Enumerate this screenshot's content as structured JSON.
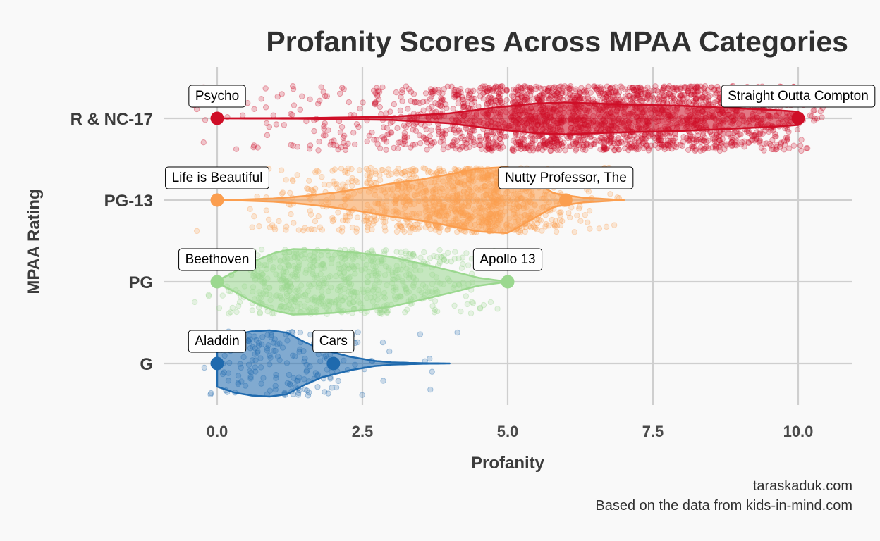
{
  "chart_data": {
    "type": "violin",
    "title": "Profanity Scores Across MPAA Categories",
    "xlabel": "Profanity",
    "ylabel": "MPAA Rating",
    "xlim": [
      -0.8,
      11.0
    ],
    "xticks": [
      "0.0",
      "2.5",
      "5.0",
      "7.5",
      "10.0"
    ],
    "xtick_values": [
      0,
      2.5,
      5,
      7.5,
      10
    ],
    "grid": true,
    "caption": [
      "taraskaduk.com",
      "Based on the data from kids-in-mind.com"
    ],
    "categories": [
      "G",
      "PG",
      "PG-13",
      "R & NC-17"
    ],
    "series": [
      {
        "category": "G",
        "color": "#1f6aae",
        "range": [
          0,
          4
        ],
        "density": [
          [
            0,
            0.7
          ],
          [
            0.3,
            0.88
          ],
          [
            0.6,
            0.97
          ],
          [
            0.9,
            1.0
          ],
          [
            1.2,
            0.93
          ],
          [
            1.5,
            0.65
          ],
          [
            1.8,
            0.42
          ],
          [
            2.0,
            0.33
          ],
          [
            2.3,
            0.2
          ],
          [
            2.7,
            0.08
          ],
          [
            3.0,
            0.035
          ],
          [
            3.5,
            0.01
          ],
          [
            4.0,
            0.0
          ]
        ],
        "points_count": 180,
        "labels": [
          {
            "x": 0,
            "text": "Aladdin"
          },
          {
            "x": 2,
            "text": "Cars"
          }
        ]
      },
      {
        "category": "PG",
        "color": "#9bd88f",
        "range": [
          0,
          5
        ],
        "density": [
          [
            0,
            0.03
          ],
          [
            0.3,
            0.3
          ],
          [
            0.6,
            0.6
          ],
          [
            1.0,
            0.88
          ],
          [
            1.3,
            0.99
          ],
          [
            1.7,
            0.97
          ],
          [
            2.0,
            0.94
          ],
          [
            2.5,
            0.86
          ],
          [
            3.0,
            0.75
          ],
          [
            3.5,
            0.55
          ],
          [
            4.0,
            0.34
          ],
          [
            4.5,
            0.12
          ],
          [
            5.0,
            0.0
          ]
        ],
        "points_count": 650,
        "labels": [
          {
            "x": 0,
            "text": "Beethoven"
          },
          {
            "x": 5,
            "text": "Apollo 13"
          }
        ]
      },
      {
        "category": "PG-13",
        "color": "#fb9e4f",
        "range": [
          0,
          7
        ],
        "density": [
          [
            0,
            0.0
          ],
          [
            0.5,
            0.02
          ],
          [
            1.0,
            0.05
          ],
          [
            1.5,
            0.12
          ],
          [
            2.0,
            0.22
          ],
          [
            2.5,
            0.35
          ],
          [
            3.0,
            0.5
          ],
          [
            3.5,
            0.62
          ],
          [
            4.0,
            0.78
          ],
          [
            4.5,
            0.95
          ],
          [
            5.0,
            1.0
          ],
          [
            5.4,
            0.6
          ],
          [
            5.8,
            0.2
          ],
          [
            6.3,
            0.07
          ],
          [
            7.0,
            0.0
          ]
        ],
        "points_count": 1100,
        "labels": [
          {
            "x": 0,
            "text": "Life is Beautiful"
          },
          {
            "x": 6,
            "text": "Nutty Professor, The"
          }
        ]
      },
      {
        "category": "R & NC-17",
        "color": "#cf0e27",
        "range": [
          0,
          10
        ],
        "density": [
          [
            0,
            0.0
          ],
          [
            1.5,
            0.01
          ],
          [
            3.0,
            0.05
          ],
          [
            4.0,
            0.15
          ],
          [
            4.8,
            0.33
          ],
          [
            5.5,
            0.45
          ],
          [
            6.0,
            0.48
          ],
          [
            7.0,
            0.42
          ],
          [
            8.0,
            0.38
          ],
          [
            9.0,
            0.3
          ],
          [
            9.6,
            0.25
          ],
          [
            10.0,
            0.2
          ]
        ],
        "points_count": 2300,
        "labels": [
          {
            "x": 0,
            "text": "Psycho"
          },
          {
            "x": 10,
            "text": "Straight Outta Compton"
          }
        ]
      }
    ]
  }
}
